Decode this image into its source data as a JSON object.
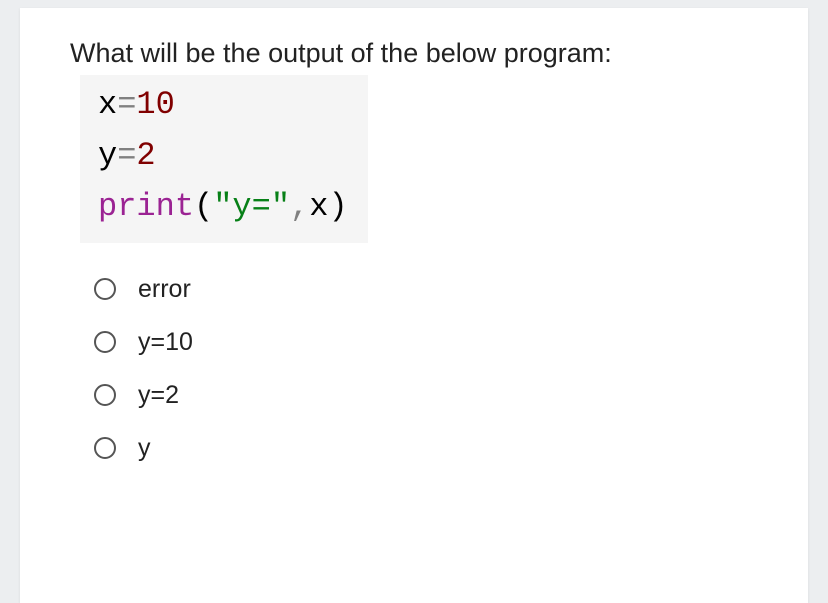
{
  "question": {
    "prompt": "What will be the output of the below program:",
    "code": {
      "line1": {
        "var": "x",
        "op": "=",
        "num": "10"
      },
      "line2": {
        "var": "y",
        "op": "=",
        "num": "2"
      },
      "line3": {
        "func": "print",
        "paren_open": "(",
        "str": "\"y=\"",
        "comma": ",",
        "arg": "x",
        "paren_close": ")"
      }
    },
    "options": [
      {
        "label": "error",
        "selected": false
      },
      {
        "label": "y=10",
        "selected": false
      },
      {
        "label": "y=2",
        "selected": false
      },
      {
        "label": "y",
        "selected": false
      }
    ]
  },
  "colors": {
    "page_bg": "#eceef0",
    "card_bg": "#ffffff",
    "code_bg": "#f5f5f5",
    "text": "#222222",
    "code_var": "#000000",
    "code_op": "#808080",
    "code_num": "#800000",
    "code_func": "#9b2393",
    "code_str": "#078017",
    "radio_border": "#555555"
  }
}
